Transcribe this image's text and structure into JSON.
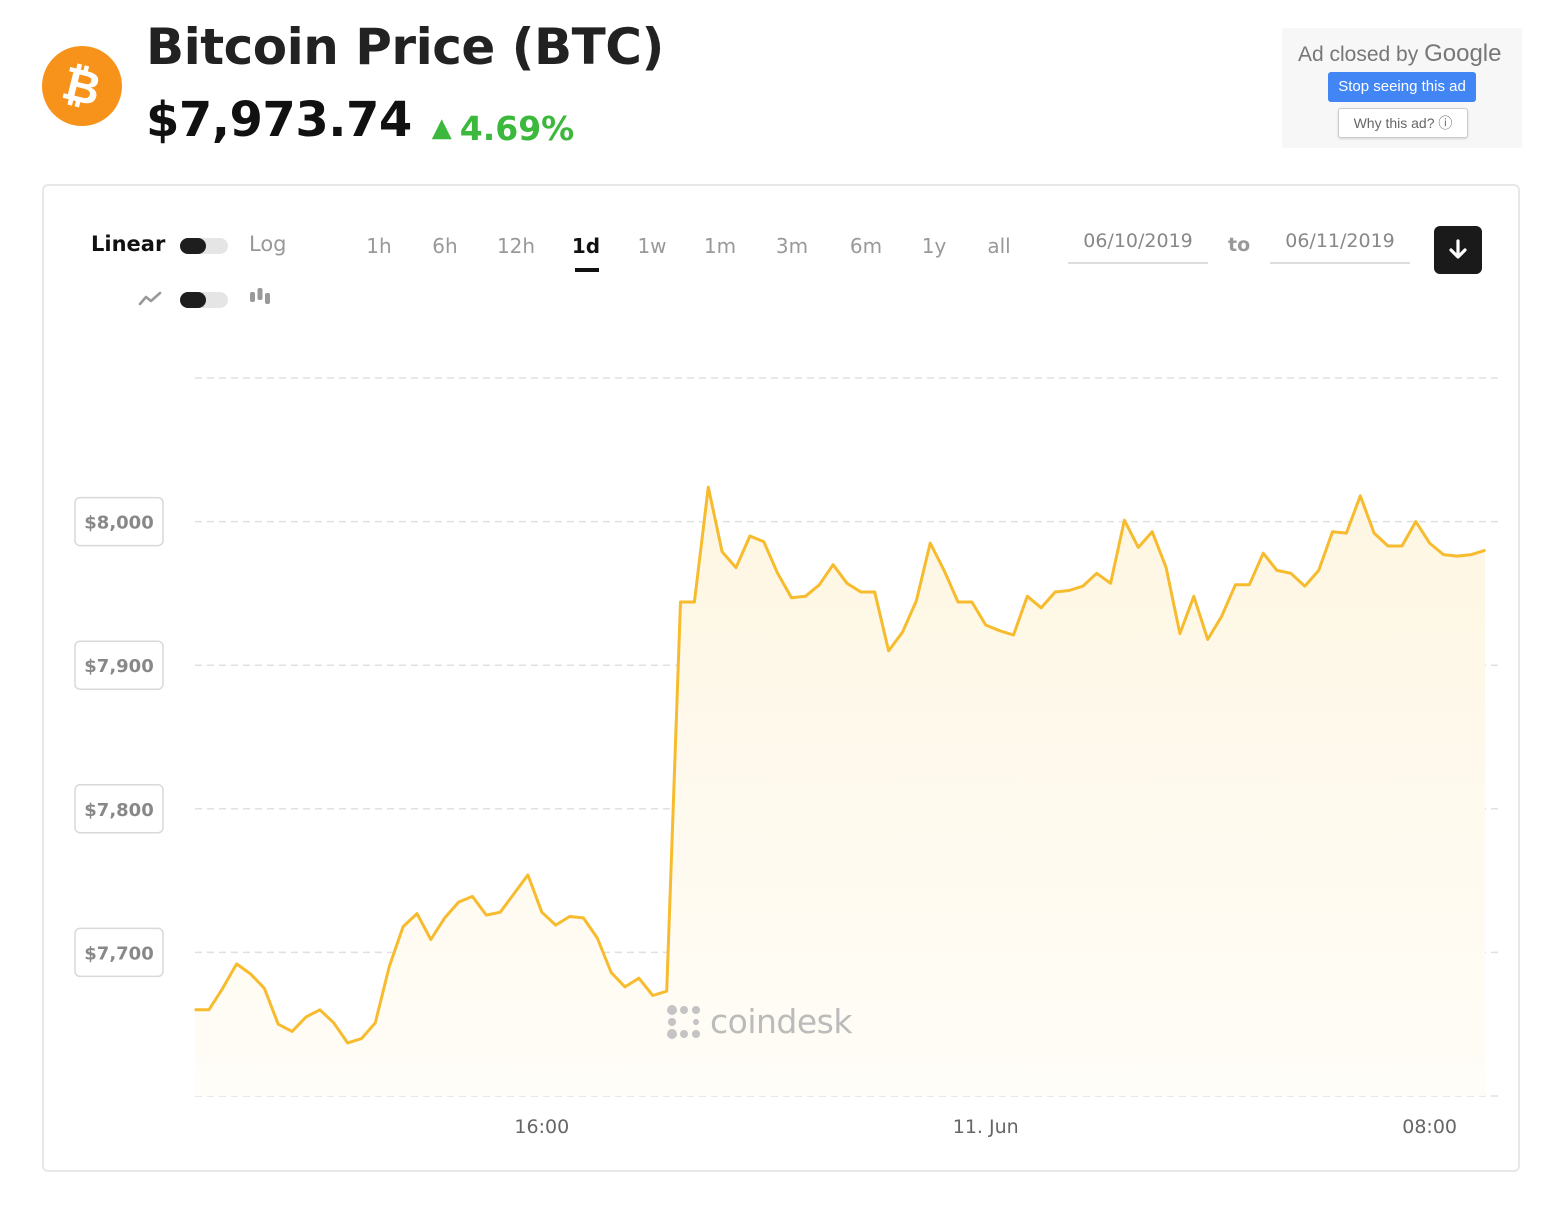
{
  "header": {
    "logo_icon": "bitcoin-icon",
    "logo_glyph": "₿",
    "logo_color": "#f7931a",
    "title": "Bitcoin Price (BTC)",
    "price": "$7,973.74",
    "change": "4.69%",
    "change_color": "#3cb83c"
  },
  "ad": {
    "closed_by": "Ad closed by",
    "google": "Google",
    "stop_button": "Stop seeing this ad",
    "why_button": "Why this ad? ⓘ"
  },
  "controls": {
    "scale_linear": "Linear",
    "scale_log": "Log",
    "chart_type_line_icon": "line-chart-icon",
    "chart_type_candle_icon": "candlestick-icon",
    "ranges": [
      "1h",
      "6h",
      "12h",
      "1d",
      "1w",
      "1m",
      "3m",
      "6m",
      "1y",
      "all"
    ],
    "active_range": "1d",
    "date_from": "06/10/2019",
    "to_label": "to",
    "date_to": "06/11/2019",
    "download_icon": "download-icon"
  },
  "watermark": "coindesk",
  "chart_data": {
    "type": "area",
    "line_color": "#f7bb2e",
    "fill_color": "#fef6e2",
    "grid": "dashed horizontal",
    "ylim": [
      7600,
      8100
    ],
    "y_ticks": [
      {
        "value": 7700,
        "label": "$7,700"
      },
      {
        "value": 7800,
        "label": "$7,800"
      },
      {
        "value": 7900,
        "label": "$7,900"
      },
      {
        "value": 8000,
        "label": "$8,000"
      }
    ],
    "xlim": [
      0,
      94
    ],
    "x_ticks": [
      {
        "value": 25,
        "label": "16:00"
      },
      {
        "value": 57,
        "label": "11. Jun"
      },
      {
        "value": 89,
        "label": "08:00"
      }
    ],
    "x_unit": "hours from 06/10/2019",
    "values": [
      7660,
      7660,
      7675,
      7692,
      7685,
      7675,
      7650,
      7645,
      7655,
      7660,
      7651,
      7637,
      7640,
      7651,
      7690,
      7718,
      7727,
      7709,
      7724,
      7735,
      7739,
      7726,
      7728,
      7741,
      7754,
      7728,
      7719,
      7725,
      7724,
      7710,
      7686,
      7676,
      7682,
      7670,
      7673,
      7944,
      7944,
      8024,
      7979,
      7968,
      7990,
      7986,
      7964,
      7947,
      7948,
      7956,
      7970,
      7957,
      7951,
      7951,
      7910,
      7923,
      7945,
      7985,
      7966,
      7944,
      7944,
      7928,
      7924,
      7921,
      7948,
      7940,
      7951,
      7952,
      7955,
      7964,
      7957,
      8001,
      7982,
      7993,
      7968,
      7922,
      7948,
      7918,
      7934,
      7956,
      7956,
      7978,
      7966,
      7964,
      7955,
      7966,
      7993,
      7992,
      8018,
      7992,
      7983,
      7983,
      8000,
      7985,
      7977,
      7976,
      7977,
      7980
    ]
  }
}
